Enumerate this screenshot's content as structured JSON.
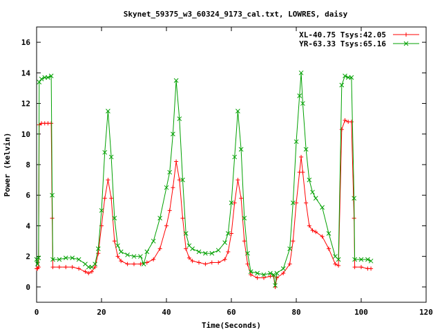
{
  "chart_data": {
    "type": "line",
    "title": "Skynet_59375_w3_60324_9173_cal.txt, LOWRES, daisy",
    "xlabel": "Time(Seconds)",
    "ylabel": "Power (kelvin)",
    "xlim": [
      0,
      120
    ],
    "ylim": [
      -1,
      17
    ],
    "xticks": [
      0,
      20,
      40,
      60,
      80,
      100,
      120
    ],
    "yticks": [
      0,
      2,
      4,
      6,
      8,
      10,
      12,
      14,
      16
    ],
    "grid": false,
    "legend_position": "top-right",
    "series": [
      {
        "name": "XL-40.75 Tsys:42.05",
        "color": "#ff0000",
        "marker": "plus",
        "points": [
          [
            0,
            1.2
          ],
          [
            0.3,
            1.2
          ],
          [
            0.6,
            1.3
          ],
          [
            0.8,
            10.6
          ],
          [
            1.5,
            10.7
          ],
          [
            2.5,
            10.7
          ],
          [
            3.5,
            10.7
          ],
          [
            4.5,
            10.7
          ],
          [
            4.8,
            4.5
          ],
          [
            5.0,
            1.3
          ],
          [
            7,
            1.3
          ],
          [
            9,
            1.3
          ],
          [
            11,
            1.3
          ],
          [
            13,
            1.2
          ],
          [
            15,
            1.0
          ],
          [
            16,
            0.9
          ],
          [
            17,
            1.0
          ],
          [
            18,
            1.3
          ],
          [
            19,
            2.2
          ],
          [
            20,
            4.0
          ],
          [
            21,
            5.8
          ],
          [
            22,
            7.0
          ],
          [
            23,
            5.8
          ],
          [
            24,
            3.0
          ],
          [
            25,
            2.0
          ],
          [
            26,
            1.7
          ],
          [
            28,
            1.5
          ],
          [
            30,
            1.5
          ],
          [
            32,
            1.5
          ],
          [
            34,
            1.6
          ],
          [
            36,
            1.8
          ],
          [
            38,
            2.5
          ],
          [
            40,
            4.0
          ],
          [
            41,
            5.0
          ],
          [
            42,
            6.5
          ],
          [
            43,
            8.2
          ],
          [
            44,
            7.0
          ],
          [
            45,
            4.5
          ],
          [
            46,
            2.5
          ],
          [
            47,
            1.9
          ],
          [
            48,
            1.7
          ],
          [
            50,
            1.6
          ],
          [
            52,
            1.5
          ],
          [
            54,
            1.6
          ],
          [
            56,
            1.6
          ],
          [
            58,
            1.8
          ],
          [
            59,
            2.3
          ],
          [
            60,
            3.5
          ],
          [
            61,
            5.5
          ],
          [
            62,
            7.0
          ],
          [
            63,
            5.8
          ],
          [
            64,
            3.0
          ],
          [
            65,
            1.5
          ],
          [
            66,
            0.8
          ],
          [
            68,
            0.6
          ],
          [
            70,
            0.6
          ],
          [
            72,
            0.7
          ],
          [
            73,
            0.7
          ],
          [
            73.5,
            0.0
          ],
          [
            74,
            0.6
          ],
          [
            76,
            0.9
          ],
          [
            78,
            1.5
          ],
          [
            79,
            3.0
          ],
          [
            80,
            5.5
          ],
          [
            81,
            7.5
          ],
          [
            81.5,
            8.5
          ],
          [
            82,
            7.5
          ],
          [
            83,
            5.5
          ],
          [
            84,
            4.0
          ],
          [
            85,
            3.7
          ],
          [
            86,
            3.6
          ],
          [
            88,
            3.3
          ],
          [
            90,
            2.5
          ],
          [
            92,
            1.5
          ],
          [
            93,
            1.4
          ],
          [
            94,
            10.3
          ],
          [
            95,
            10.9
          ],
          [
            96,
            10.8
          ],
          [
            97,
            10.8
          ],
          [
            97.8,
            4.5
          ],
          [
            98,
            1.3
          ],
          [
            100,
            1.3
          ],
          [
            102,
            1.2
          ],
          [
            103,
            1.2
          ]
        ]
      },
      {
        "name": "YR-63.33 Tsys:65.16",
        "color": "#00a000",
        "marker": "x",
        "points": [
          [
            0,
            1.8
          ],
          [
            0.3,
            1.5
          ],
          [
            0.6,
            1.9
          ],
          [
            0.8,
            13.4
          ],
          [
            1.5,
            13.6
          ],
          [
            2.5,
            13.7
          ],
          [
            3.5,
            13.7
          ],
          [
            4.5,
            13.8
          ],
          [
            4.8,
            6.0
          ],
          [
            5.0,
            1.8
          ],
          [
            7,
            1.8
          ],
          [
            9,
            1.9
          ],
          [
            11,
            1.9
          ],
          [
            13,
            1.8
          ],
          [
            15,
            1.5
          ],
          [
            16,
            1.3
          ],
          [
            17,
            1.3
          ],
          [
            18,
            1.5
          ],
          [
            19,
            2.5
          ],
          [
            20,
            5.0
          ],
          [
            21,
            8.8
          ],
          [
            22,
            11.5
          ],
          [
            23,
            8.5
          ],
          [
            24,
            4.5
          ],
          [
            25,
            2.7
          ],
          [
            26,
            2.3
          ],
          [
            28,
            2.1
          ],
          [
            30,
            2.0
          ],
          [
            32,
            2.0
          ],
          [
            33,
            1.5
          ],
          [
            34,
            2.3
          ],
          [
            36,
            3.0
          ],
          [
            38,
            4.5
          ],
          [
            40,
            6.5
          ],
          [
            41,
            7.5
          ],
          [
            42,
            10.0
          ],
          [
            43,
            13.5
          ],
          [
            44,
            11.0
          ],
          [
            45,
            7.0
          ],
          [
            46,
            3.5
          ],
          [
            47,
            2.7
          ],
          [
            48,
            2.5
          ],
          [
            50,
            2.3
          ],
          [
            52,
            2.2
          ],
          [
            54,
            2.2
          ],
          [
            56,
            2.4
          ],
          [
            58,
            2.9
          ],
          [
            59,
            3.5
          ],
          [
            60,
            5.5
          ],
          [
            61,
            8.5
          ],
          [
            62,
            11.5
          ],
          [
            63,
            9.0
          ],
          [
            64,
            4.5
          ],
          [
            65,
            2.2
          ],
          [
            66,
            1.0
          ],
          [
            68,
            0.9
          ],
          [
            70,
            0.8
          ],
          [
            72,
            0.9
          ],
          [
            73,
            0.8
          ],
          [
            73.5,
            0.1
          ],
          [
            74,
            0.9
          ],
          [
            76,
            1.2
          ],
          [
            78,
            2.5
          ],
          [
            79,
            5.5
          ],
          [
            80,
            9.5
          ],
          [
            81,
            12.5
          ],
          [
            81.5,
            14.0
          ],
          [
            82,
            12.0
          ],
          [
            83,
            9.0
          ],
          [
            84,
            7.0
          ],
          [
            85,
            6.2
          ],
          [
            86,
            5.8
          ],
          [
            88,
            5.2
          ],
          [
            90,
            3.5
          ],
          [
            92,
            2.0
          ],
          [
            93,
            1.8
          ],
          [
            94,
            13.2
          ],
          [
            95,
            13.8
          ],
          [
            96,
            13.7
          ],
          [
            97,
            13.7
          ],
          [
            97.8,
            5.8
          ],
          [
            98,
            1.8
          ],
          [
            100,
            1.8
          ],
          [
            102,
            1.8
          ],
          [
            103,
            1.7
          ]
        ]
      }
    ]
  }
}
